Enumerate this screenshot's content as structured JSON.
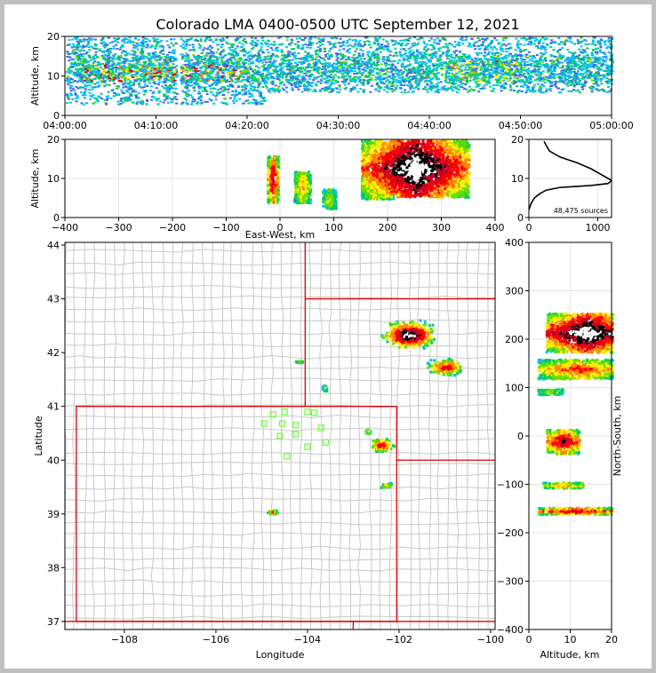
{
  "title": "Colorado LMA 0400-0500 UTC September 12, 2021",
  "colors": {
    "state_border": "#e00000",
    "county_border": "#c8c8c8",
    "station": "#66ff33",
    "profile": "#000000",
    "grid": "#dddddd",
    "density_scale": [
      "#4169e1",
      "#00c0ff",
      "#00cc66",
      "#66dd00",
      "#ffee00",
      "#ff8800",
      "#ff0000",
      "#cc0022",
      "#000000",
      "#ffffff"
    ]
  },
  "chart_data": [
    {
      "id": "time_height",
      "type": "heatmap",
      "ylabel": "Altitude, km",
      "xlim": [
        "04:00:00",
        "05:00:00"
      ],
      "ylim": [
        0,
        20
      ],
      "xticks": [
        "04:00:00",
        "04:10:00",
        "04:20:00",
        "04:30:00",
        "04:40:00",
        "04:50:00",
        "05:00:00"
      ],
      "yticks": [
        "0",
        "10",
        "20"
      ],
      "bands": [
        {
          "t0": 0,
          "t1": 60,
          "z0": 8.5,
          "z1": 15.5,
          "level": 3
        },
        {
          "t0": 0,
          "t1": 22,
          "z0": 3,
          "z1": 20,
          "level": 2
        },
        {
          "t0": 22,
          "t1": 60,
          "z0": 6,
          "z1": 20,
          "level": 2
        },
        {
          "t0": 2,
          "t1": 20,
          "z0": 9,
          "z1": 13,
          "level": 7
        },
        {
          "t0": 42,
          "t1": 50,
          "z0": 9,
          "z1": 14,
          "level": 5
        }
      ],
      "gap_minutes": [
        12.2,
        12.6
      ]
    },
    {
      "id": "ew_altitude",
      "type": "heatmap",
      "xlabel": "East-West, km",
      "ylabel": "Altitude, km",
      "xlim": [
        -400,
        400
      ],
      "ylim": [
        0,
        20
      ],
      "xticks": [
        "−400",
        "−300",
        "−200",
        "−100",
        "0",
        "100",
        "200",
        "300",
        "400"
      ],
      "yticks": [
        "0",
        "10",
        "20"
      ],
      "clusters": [
        {
          "x": -15,
          "z": 10,
          "w": 20,
          "h": 12,
          "level": 6
        },
        {
          "x": 40,
          "z": 8,
          "w": 30,
          "h": 8,
          "level": 4
        },
        {
          "x": 90,
          "z": 5,
          "w": 25,
          "h": 5,
          "level": 3
        },
        {
          "x": 180,
          "z": 8,
          "w": 60,
          "h": 6,
          "level": 4
        },
        {
          "x": 250,
          "z": 13,
          "w": 200,
          "h": 15,
          "level": 8
        }
      ]
    },
    {
      "id": "altitude_histogram",
      "type": "line",
      "xlim": [
        0,
        1200
      ],
      "ylim": [
        0,
        20
      ],
      "xticks": [
        "0",
        "1000"
      ],
      "yticks": [
        "0",
        "10",
        "20"
      ],
      "annotation": "48,475 sources",
      "profile": [
        [
          0,
          2
        ],
        [
          30,
          3.5
        ],
        [
          80,
          5
        ],
        [
          150,
          6
        ],
        [
          250,
          7
        ],
        [
          450,
          7.7
        ],
        [
          900,
          8.2
        ],
        [
          1150,
          8.7
        ],
        [
          1200,
          9.5
        ],
        [
          1050,
          11
        ],
        [
          900,
          12.5
        ],
        [
          700,
          14
        ],
        [
          450,
          15.5
        ],
        [
          300,
          17
        ],
        [
          250,
          18.5
        ],
        [
          220,
          19.5
        ]
      ]
    },
    {
      "id": "plan_view",
      "type": "heatmap",
      "xlabel": "Longitude",
      "ylabel": "Latitude",
      "xlim": [
        -109.3,
        -99.9
      ],
      "ylim": [
        36.85,
        44.05
      ],
      "xticks": [
        "−108",
        "−106",
        "−104",
        "−102",
        "−100"
      ],
      "yticks": [
        "37",
        "38",
        "39",
        "40",
        "41",
        "42",
        "43",
        "44"
      ],
      "stations": [
        [
          -104.75,
          40.85
        ],
        [
          -104.5,
          40.9
        ],
        [
          -104.0,
          40.9
        ],
        [
          -103.85,
          40.88
        ],
        [
          -104.95,
          40.68
        ],
        [
          -104.55,
          40.68
        ],
        [
          -104.25,
          40.65
        ],
        [
          -103.7,
          40.6
        ],
        [
          -104.6,
          40.45
        ],
        [
          -104.25,
          40.48
        ],
        [
          -103.6,
          40.33
        ],
        [
          -104.0,
          40.25
        ],
        [
          -104.45,
          40.07
        ]
      ],
      "storms": [
        {
          "lon": -101.8,
          "lat": 42.35,
          "w": 1.3,
          "h": 0.6,
          "level": 8
        },
        {
          "lon": -101.0,
          "lat": 41.75,
          "w": 0.9,
          "h": 0.35,
          "level": 6
        },
        {
          "lon": -102.4,
          "lat": 40.3,
          "w": 0.6,
          "h": 0.3,
          "level": 6
        },
        {
          "lon": -102.3,
          "lat": 39.55,
          "w": 0.3,
          "h": 0.12,
          "level": 4
        },
        {
          "lon": -104.8,
          "lat": 39.05,
          "w": 0.3,
          "h": 0.1,
          "level": 5
        },
        {
          "lon": -104.2,
          "lat": 41.85,
          "w": 0.2,
          "h": 0.06,
          "level": 3
        },
        {
          "lon": -103.65,
          "lat": 41.35,
          "w": 0.15,
          "h": 0.12,
          "level": 3
        },
        {
          "lon": -102.7,
          "lat": 40.55,
          "w": 0.15,
          "h": 0.1,
          "level": 4
        }
      ]
    },
    {
      "id": "ns_altitude",
      "type": "heatmap",
      "xlabel": "Altitude, km",
      "ylabel": "North-South, km",
      "xlim": [
        0,
        20
      ],
      "ylim": [
        -400,
        400
      ],
      "xticks": [
        "0",
        "10",
        "20"
      ],
      "yticks": [
        "−400",
        "−300",
        "−200",
        "−100",
        "0",
        "100",
        "200",
        "300",
        "400"
      ],
      "clusters": [
        {
          "z": 14,
          "y": 215,
          "w": 20,
          "h": 80,
          "level": 8
        },
        {
          "z": 12,
          "y": 140,
          "w": 20,
          "h": 40,
          "level": 5
        },
        {
          "z": 5,
          "y": 93,
          "w": 6,
          "h": 12,
          "level": 3
        },
        {
          "z": 8,
          "y": -10,
          "w": 8,
          "h": 50,
          "level": 6
        },
        {
          "z": 8,
          "y": -100,
          "w": 10,
          "h": 12,
          "level": 4
        },
        {
          "z": 11,
          "y": -153,
          "w": 18,
          "h": 14,
          "level": 6
        }
      ]
    }
  ]
}
